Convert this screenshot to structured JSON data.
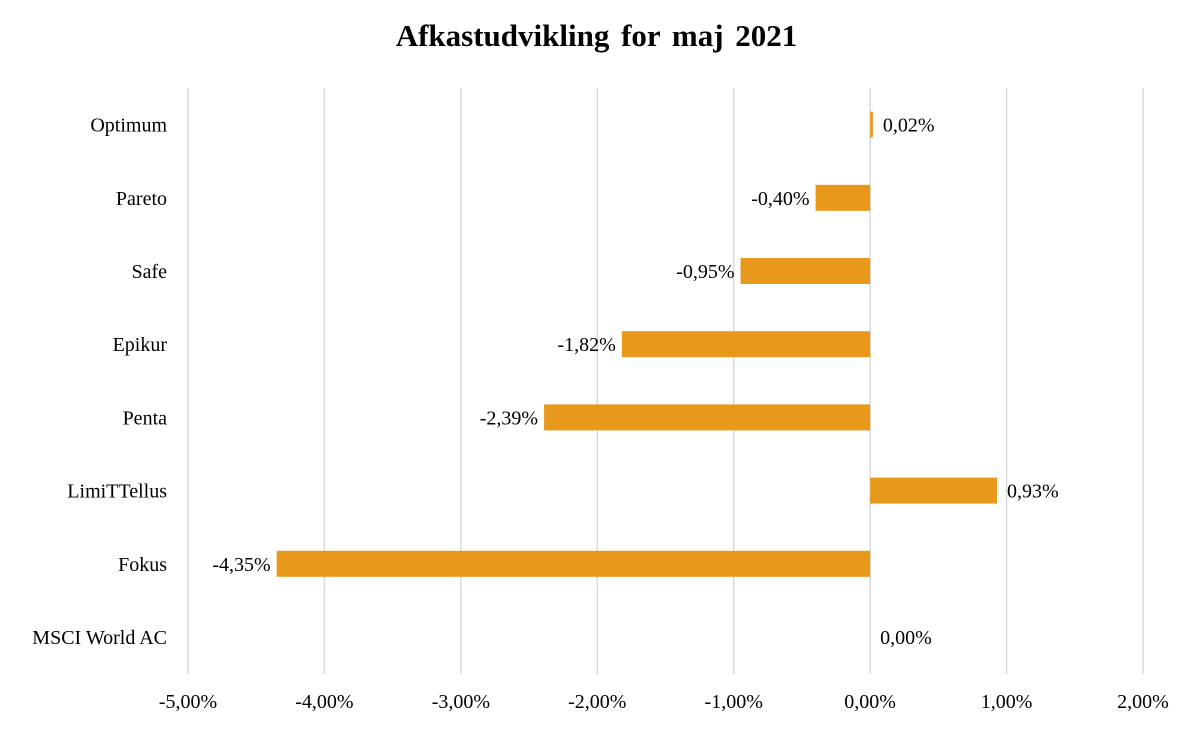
{
  "chart_data": {
    "type": "bar",
    "orientation": "horizontal",
    "title": "Afkastudvikling for maj 2021",
    "xlabel": "",
    "ylabel": "",
    "categories": [
      "Optimum",
      "Pareto",
      "Safe",
      "Epikur",
      "Penta",
      "LimiTTellus",
      "Fokus",
      "MSCI World AC"
    ],
    "values": [
      0.02,
      -0.4,
      -0.95,
      -1.82,
      -2.39,
      0.93,
      -4.35,
      0.0
    ],
    "data_labels": [
      "0,02%",
      "-0,40%",
      "-0,95%",
      "-1,82%",
      "-2,39%",
      "0,93%",
      "-4,35%",
      "0,00%"
    ],
    "xlim": [
      -5,
      2
    ],
    "ticks": [
      -5,
      -4,
      -3,
      -2,
      -1,
      0,
      1,
      2
    ],
    "tick_labels": [
      "-5,00%",
      "-4,00%",
      "-3,00%",
      "-2,00%",
      "-1,00%",
      "0,00%",
      "1,00%",
      "2,00%"
    ],
    "grid": "vertical",
    "legend": "none",
    "bar_color": "#E8991C",
    "grid_color": "#D9D9D9"
  }
}
